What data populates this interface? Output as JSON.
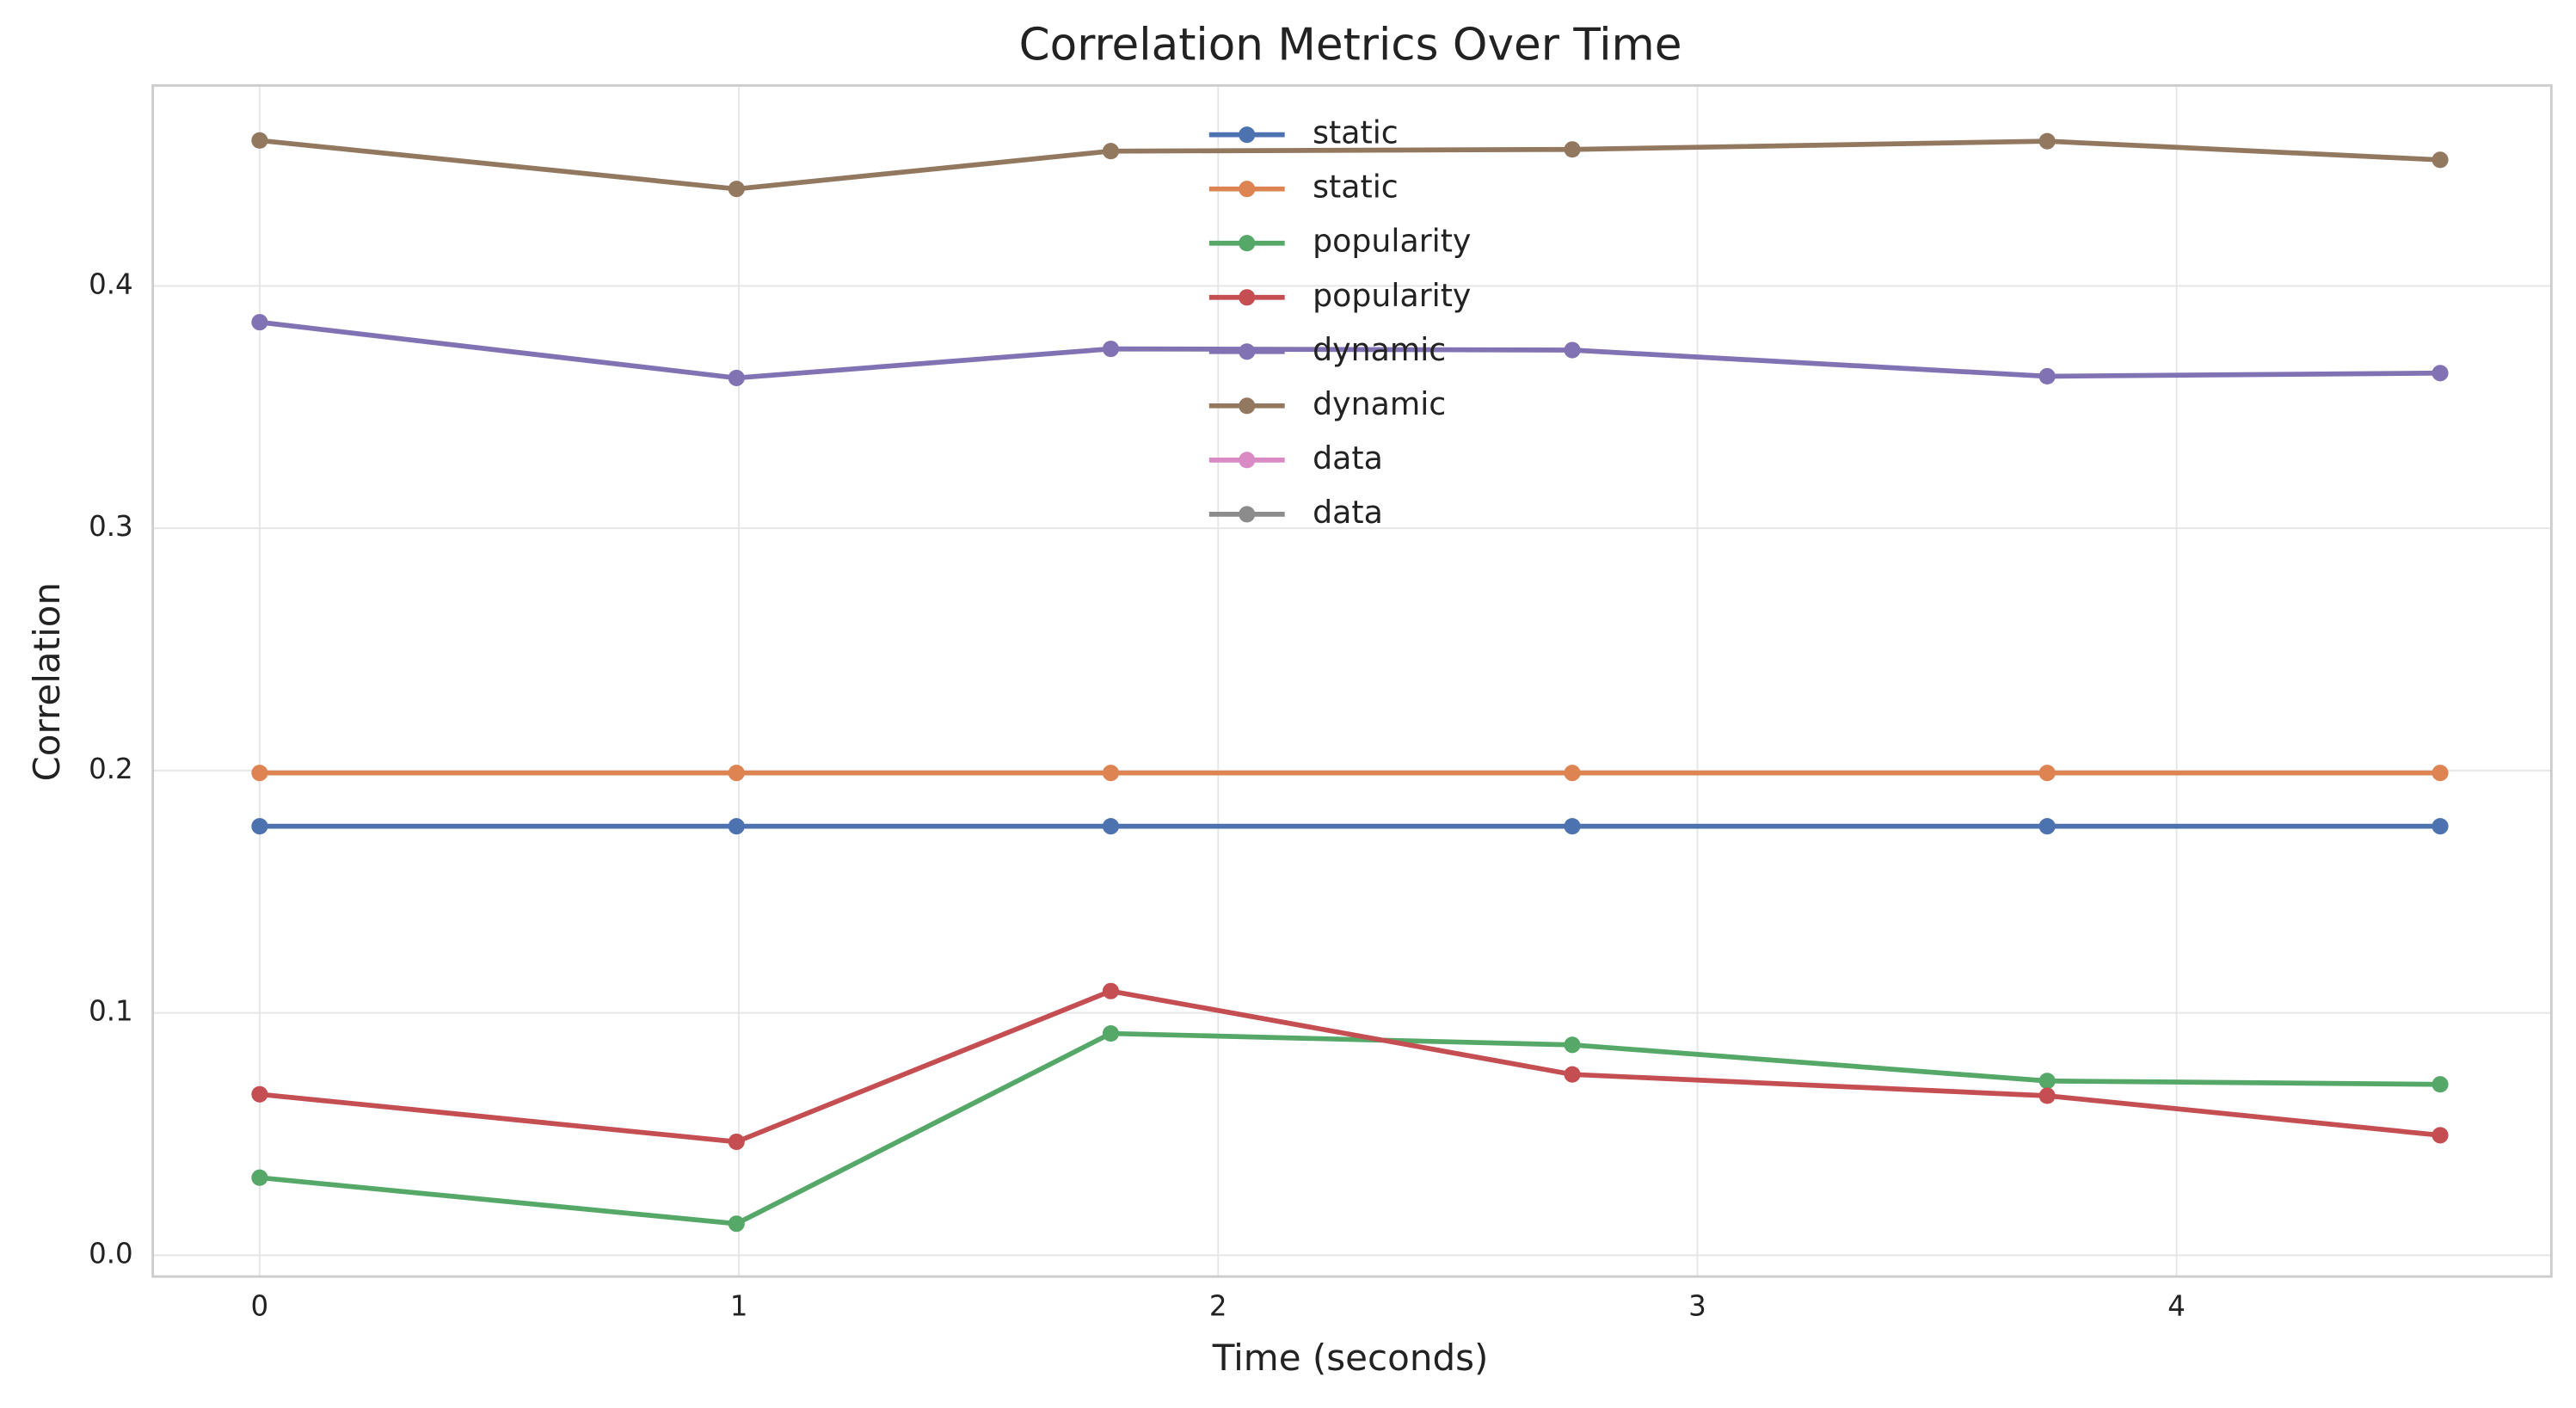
{
  "chart_data": {
    "type": "line",
    "title": "Correlation Metrics Over Time",
    "x_label": "Time (seconds)",
    "y_label": "Correlation",
    "x": [
      0,
      0.995,
      1.776,
      2.739,
      3.73,
      4.55
    ],
    "series": [
      {
        "name": "static",
        "color": "#4c72b0",
        "values": [
          0.177,
          0.177,
          0.177,
          0.177,
          0.177,
          0.177
        ]
      },
      {
        "name": "static",
        "color": "#dd8452",
        "values": [
          0.199,
          0.199,
          0.199,
          0.199,
          0.199,
          0.199
        ]
      },
      {
        "name": "popularity",
        "color": "#55a868",
        "values": [
          0.032,
          0.013,
          0.0915,
          0.0868,
          0.0719,
          0.0705
        ]
      },
      {
        "name": "popularity",
        "color": "#c44e52",
        "values": [
          0.0664,
          0.0468,
          0.109,
          0.0746,
          0.0658,
          0.0495
        ]
      },
      {
        "name": "dynamic",
        "color": "#8172b3",
        "values": [
          0.385,
          0.362,
          0.374,
          0.3735,
          0.3627,
          0.364
        ]
      },
      {
        "name": "dynamic",
        "color": "#937860",
        "values": [
          0.46,
          0.44,
          0.4556,
          0.4563,
          0.4597,
          0.452
        ]
      },
      {
        "name": "data",
        "color": "#da8bc3",
        "values": [
          null,
          null,
          null,
          null,
          null,
          null
        ]
      },
      {
        "name": "data",
        "color": "#8c8c8c",
        "values": [
          null,
          null,
          null,
          null,
          null,
          null
        ]
      }
    ],
    "xlim": [
      -0.223,
      4.782
    ],
    "ylim": [
      -0.0088,
      0.4827
    ],
    "xticks": [
      0,
      1,
      2,
      3,
      4
    ],
    "yticks": [
      {
        "value": 0,
        "label": "0.0"
      },
      0.1,
      0.2,
      0.3,
      0.4
    ],
    "grid": true,
    "legend": "upper center"
  }
}
